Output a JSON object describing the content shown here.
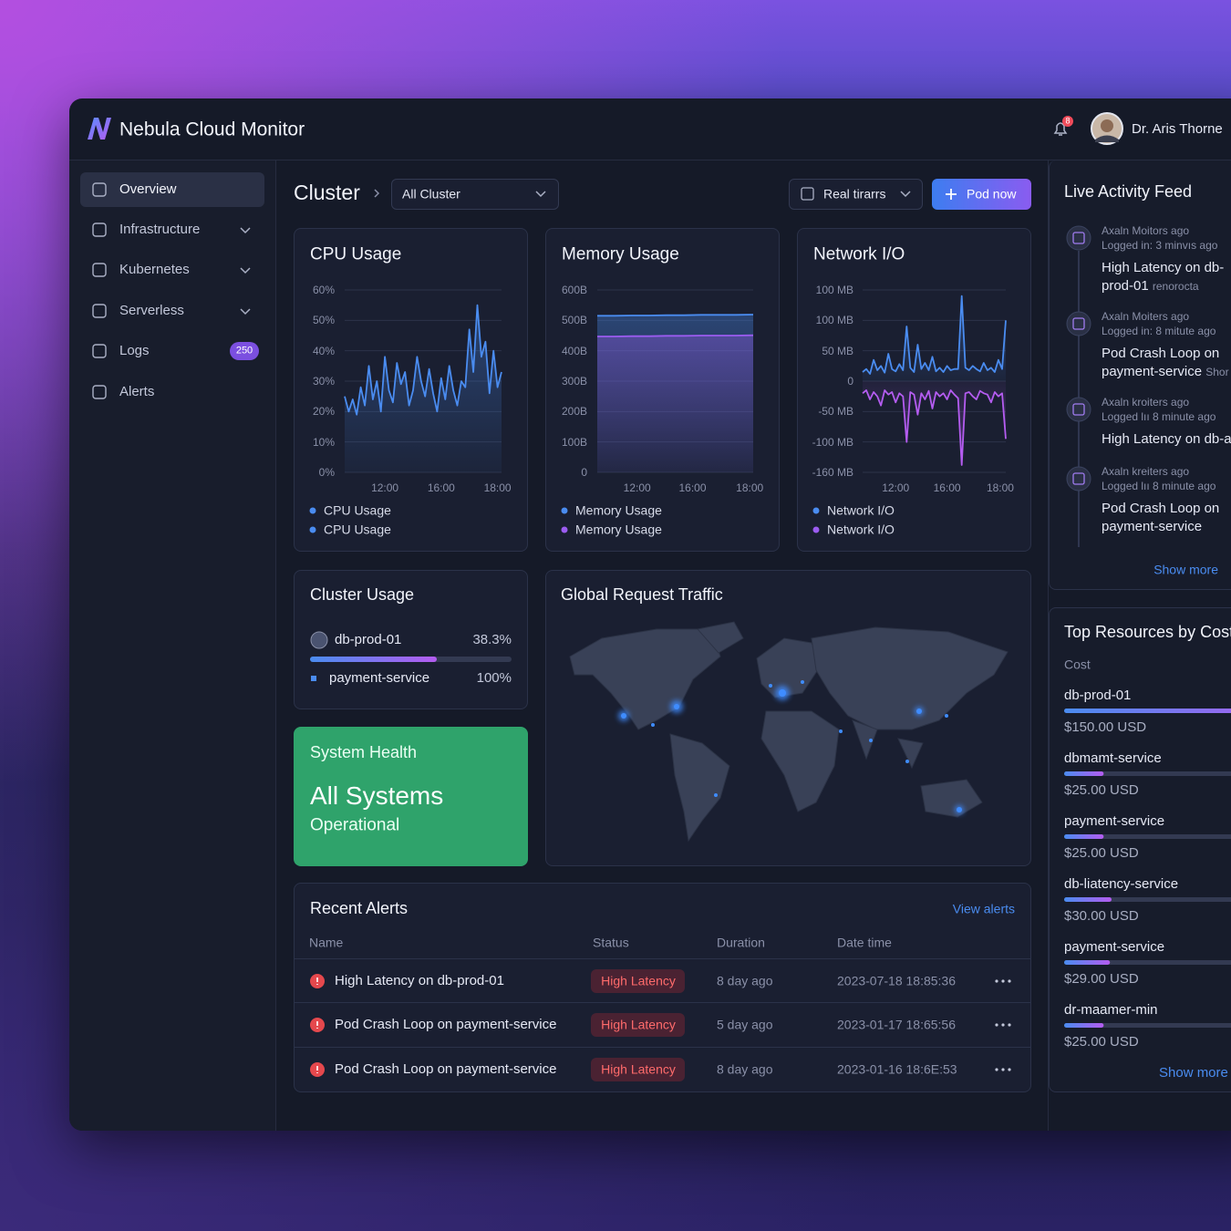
{
  "header": {
    "brand": "Nebula Cloud Monitor",
    "notification_count": 8,
    "user": "Dr. Aris Thorne"
  },
  "sidebar": {
    "items": [
      {
        "label": "Overview",
        "active": true
      },
      {
        "label": "Infrastructure",
        "expandable": true
      },
      {
        "label": "Kubernetes",
        "expandable": true
      },
      {
        "label": "Serverless",
        "expandable": true
      },
      {
        "label": "Logs",
        "badge": 250
      },
      {
        "label": "Alerts"
      }
    ]
  },
  "toolbar": {
    "title": "Cluster",
    "cluster_select": "All Cluster",
    "time_select": "Real tirarrs",
    "action_button": "Pod now"
  },
  "cpu": {
    "title": "CPU Usage",
    "ylim": [
      0,
      60
    ],
    "yticks": [
      {
        "value": 60,
        "label": "60%"
      },
      {
        "value": 50,
        "label": "50%"
      },
      {
        "value": 40,
        "label": "40%"
      },
      {
        "value": 30,
        "label": "30%"
      },
      {
        "value": 20,
        "label": "20%"
      },
      {
        "value": 10,
        "label": "10%"
      },
      {
        "value": 0,
        "label": "0%"
      }
    ],
    "xlim": [
      0,
      39
    ],
    "xticks": [
      {
        "value": 10,
        "label": "12:00"
      },
      {
        "value": 24,
        "label": "16:00"
      },
      {
        "value": 38,
        "label": "18:00"
      }
    ],
    "series": [
      {
        "color": "#4a8cf0",
        "values": [
          25,
          20,
          24,
          19,
          28,
          22,
          35,
          24,
          30,
          20,
          38,
          27,
          23,
          36,
          29,
          33,
          22,
          27,
          38,
          30,
          25,
          34,
          26,
          20,
          31,
          24,
          35,
          27,
          22,
          30,
          28,
          47,
          33,
          55,
          38,
          43,
          26,
          40,
          28,
          33
        ]
      }
    ],
    "legend": [
      {
        "name": "CPU Usage",
        "color": "#4a8cf0"
      },
      {
        "name": "CPU Usage",
        "color": "#4a8cf0"
      }
    ]
  },
  "memory": {
    "title": "Memory Usage",
    "ylim": [
      0,
      600
    ],
    "yticks": [
      {
        "value": 600,
        "label": "600B"
      },
      {
        "value": 500,
        "label": "500B"
      },
      {
        "value": 400,
        "label": "400B"
      },
      {
        "value": 300,
        "label": "300B"
      },
      {
        "value": 200,
        "label": "200B"
      },
      {
        "value": 100,
        "label": "100B"
      },
      0
    ],
    "xlim": [
      0,
      9
    ],
    "xticks": [
      {
        "value": 2.3,
        "label": "12:00"
      },
      {
        "value": 5.5,
        "label": "16:00"
      },
      {
        "value": 8.8,
        "label": "18:00"
      }
    ],
    "series": [
      {
        "color": "#4a8cf0",
        "values": [
          515,
          515,
          516,
          516,
          517,
          517,
          518,
          518,
          518,
          519
        ]
      },
      {
        "color": "#9b5cf0",
        "values": [
          447,
          447,
          448,
          448,
          449,
          449,
          450,
          450,
          450,
          451
        ]
      }
    ],
    "legend": [
      {
        "name": "Memory Usage",
        "color": "#4a8cf0"
      },
      {
        "name": "Memory Usage",
        "color": "#9b5cf0"
      }
    ]
  },
  "network": {
    "title": "Network I/O",
    "ylim": [
      -150,
      150
    ],
    "ytick_labels": [
      "100 MB",
      "100 MB",
      "50 MB",
      "0",
      "-50 MB",
      "-100 MB",
      "-160 MB"
    ],
    "xlim": [
      0,
      39
    ],
    "xticks": [
      {
        "value": 9,
        "label": "12:00"
      },
      {
        "value": 23,
        "label": "16:00"
      },
      {
        "value": 37.5,
        "label": "18:00"
      }
    ],
    "series": [
      {
        "color": "#4a8cf0",
        "values": [
          15,
          20,
          12,
          35,
          18,
          25,
          14,
          45,
          20,
          16,
          28,
          18,
          90,
          22,
          15,
          60,
          20,
          30,
          18,
          40,
          16,
          22,
          15,
          25,
          18,
          20,
          20,
          140,
          22,
          18,
          25,
          20,
          16,
          30,
          18,
          22,
          15,
          35,
          20,
          100
        ]
      },
      {
        "color": "#b45cf0",
        "values": [
          -20,
          -15,
          -30,
          -18,
          -25,
          -40,
          -15,
          -22,
          -18,
          -35,
          -20,
          -25,
          -100,
          -18,
          -22,
          -55,
          -20,
          -30,
          -16,
          -45,
          -18,
          -25,
          -20,
          -30,
          -15,
          -22,
          -28,
          -138,
          -20,
          -18,
          -25,
          -30,
          -16,
          -20,
          -22,
          -35,
          -18,
          -25,
          -20,
          -95
        ]
      }
    ],
    "legend": [
      {
        "name": "Network I/O",
        "color": "#4a8cf0"
      },
      {
        "name": "Network I/O",
        "color": "#9b5cf0"
      }
    ]
  },
  "cluster_usage": {
    "title": "Cluster Usage",
    "items": [
      {
        "name": "db-prod-01",
        "value": "38.3%"
      },
      {
        "name": "payment-service",
        "value": "100%"
      }
    ]
  },
  "system_health": {
    "label": "System Health",
    "status": "All Systems",
    "detail": "Operational"
  },
  "traffic_map": {
    "title": "Global Request Traffic"
  },
  "recent_alerts": {
    "title": "Recent Alerts",
    "link": "View alerts",
    "columns": [
      "Name",
      "Status",
      "Duration",
      "Date time"
    ],
    "rows": [
      [
        "High Latency on db-prod-01",
        "High Latency",
        "8 day ago",
        "2023-07-18 18:85:36"
      ],
      [
        "Pod Crash Loop on payment-service",
        "High Latency",
        "5 day ago",
        "2023-01-17 18:65:56"
      ],
      [
        "Pod Crash Loop on payment-service",
        "High Latency",
        "8 day ago",
        "2023-01-16 18:6E:53"
      ]
    ]
  },
  "activity_feed": {
    "title": "Live Activity Feed",
    "items": [
      {
        "actor": "Axaln Moitors ago",
        "time": "Logged in: 3 minvıs ago",
        "message": "High Latency on db-prod-01",
        "tag": "renorocta"
      },
      {
        "actor": "Axaln Moiters ago",
        "time": "Logged in: 8 mitute ago",
        "message": "Pod Crash Loop on payment-service",
        "tag": "Shor"
      },
      {
        "actor": "Axaln kroiters ago",
        "time": "Logged lıı 8 minute ago",
        "message": "High Latency on db-a"
      },
      {
        "actor": "Axaln kreiters ago",
        "time": "Logged lıı 8 minute ago",
        "message": "Pod Crash Loop on payment-service"
      }
    ],
    "more": "Show more"
  },
  "top_resources": {
    "title": "Top Resources by Cost",
    "subtitle": "Cost",
    "items": [
      {
        "name": "db-prod-01",
        "cost": 150,
        "cost_label": "$150.00 USD"
      },
      {
        "name": "dbmamt-service",
        "cost": 25,
        "cost_label": "$25.00 USD"
      },
      {
        "name": "payment-service",
        "cost": 25,
        "cost_label": "$25.00 USD"
      },
      {
        "name": "db-liatency-service",
        "cost": 30,
        "cost_label": "$30.00 USD"
      },
      {
        "name": "payment-service",
        "cost": 29,
        "cost_label": "$29.00 USD"
      },
      {
        "name": "dr-maamer-min",
        "cost": 25,
        "cost_label": "$25.00 USD"
      }
    ],
    "more": "Show more"
  }
}
